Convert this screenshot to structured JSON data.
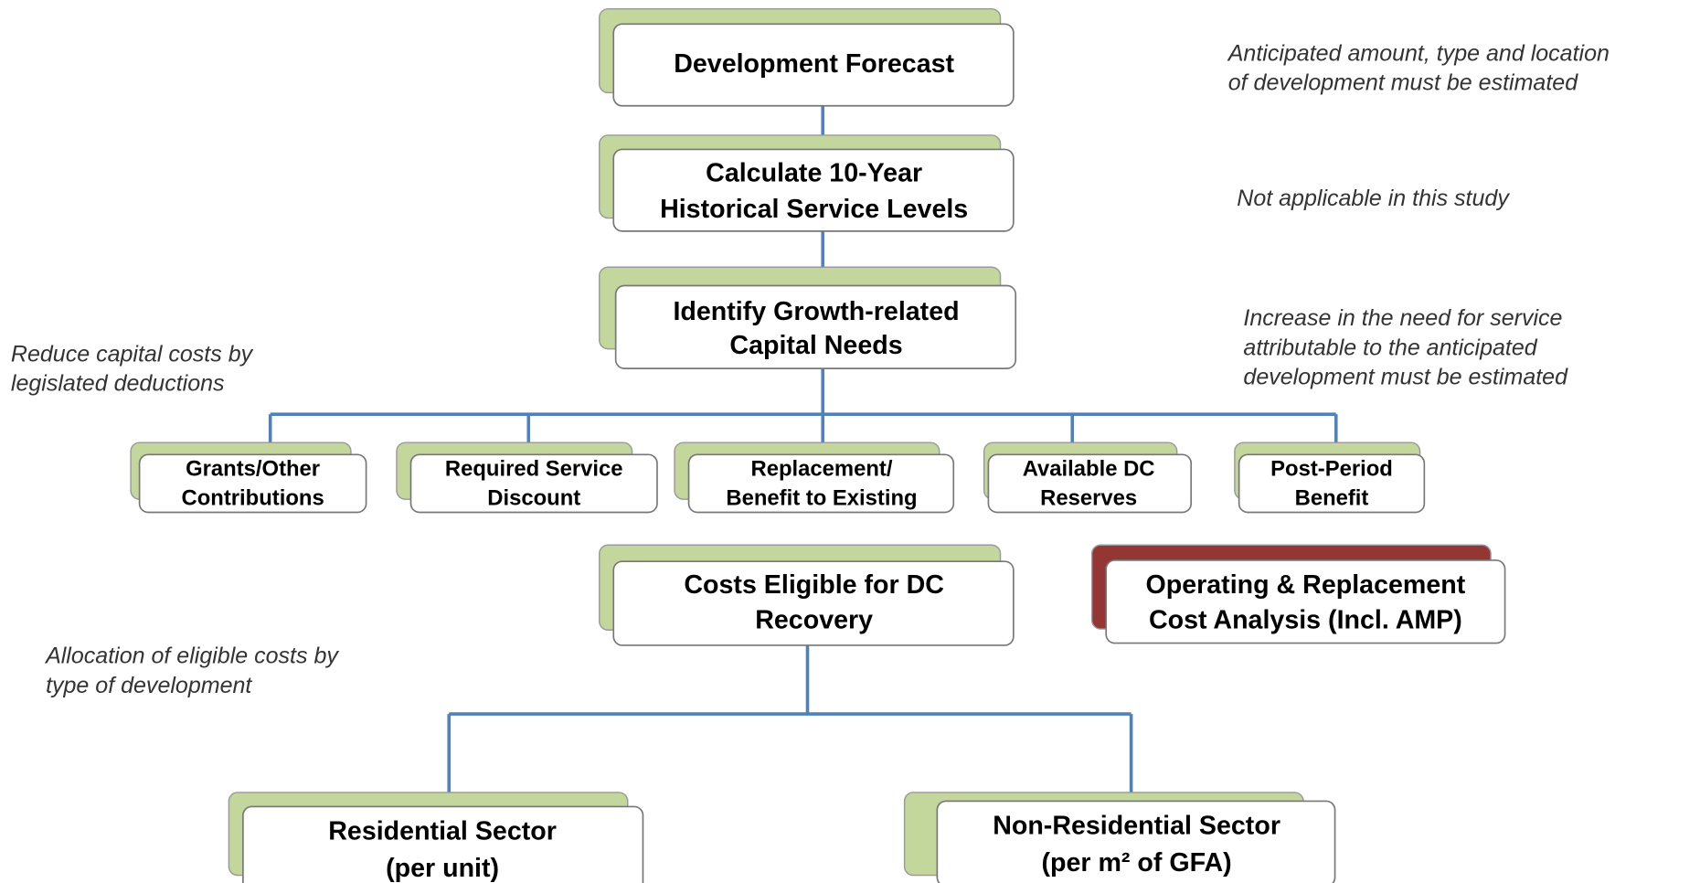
{
  "nodes": [
    {
      "lines": [
        "Development Forecast"
      ]
    },
    {
      "lines": [
        "Calculate 10-Year",
        "Historical Service Levels"
      ]
    },
    {
      "lines": [
        "Identify Growth-related",
        "Capital Needs"
      ]
    },
    {
      "lines": [
        "Grants/Other",
        "Contributions"
      ]
    },
    {
      "lines": [
        "Required Service",
        "Discount"
      ]
    },
    {
      "lines": [
        "Replacement/",
        "Benefit to Existing"
      ]
    },
    {
      "lines": [
        "Available DC",
        "Reserves"
      ]
    },
    {
      "lines": [
        "Post-Period",
        "Benefit"
      ]
    },
    {
      "lines": [
        "Costs Eligible for DC",
        "Recovery"
      ]
    },
    {
      "lines": [
        "Operating & Replacement",
        "Cost Analysis (Incl. AMP)"
      ]
    },
    {
      "lines": [
        "Residential Sector",
        "(per unit)"
      ]
    },
    {
      "lines": [
        "Non-Residential Sector",
        "(per m² of GFA)"
      ]
    }
  ],
  "notes": [
    {
      "lines": [
        "Anticipated amount, type and location",
        "of development must be estimated"
      ]
    },
    {
      "lines": [
        "Not applicable in this study"
      ]
    },
    {
      "lines": [
        "Increase in the need for service",
        "attributable to the anticipated",
        "development must be estimated"
      ]
    },
    {
      "lines": [
        "Reduce capital costs by",
        "legislated deductions"
      ]
    },
    {
      "lines": [
        "Allocation of eligible costs by",
        "type of development"
      ]
    }
  ]
}
